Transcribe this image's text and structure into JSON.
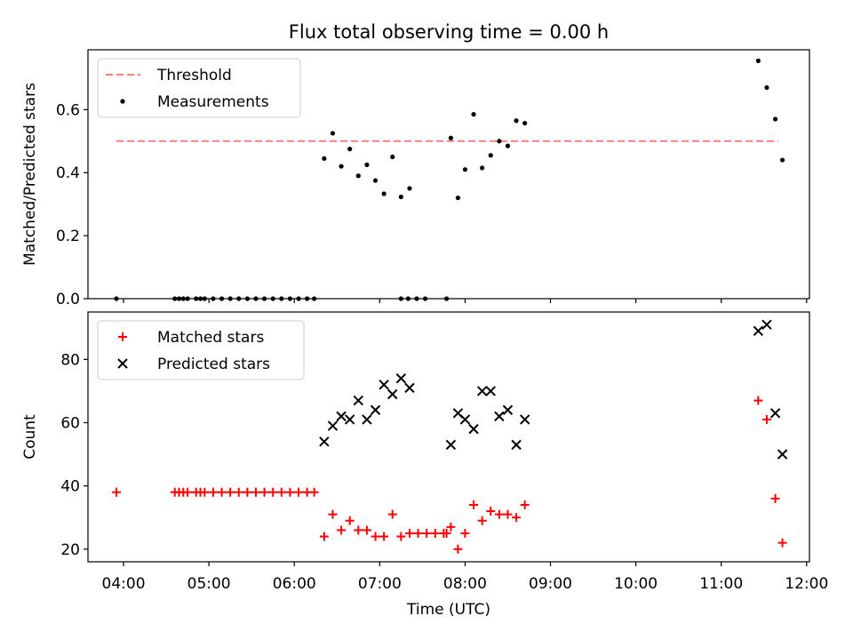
{
  "title": "Flux total observing time = 0.00 h",
  "xlabel": "Time (UTC)",
  "x_ticks": [
    "04:00",
    "05:00",
    "06:00",
    "07:00",
    "08:00",
    "09:00",
    "10:00",
    "11:00",
    "12:00"
  ],
  "colors": {
    "threshold": "#ff7f7f",
    "measurements": "#000000",
    "matched": "#ff0000",
    "predicted": "#000000"
  },
  "chart_data": [
    {
      "type": "scatter",
      "panel": "top",
      "ylabel": "Matched/Predicted stars",
      "xlim": [
        "03:35",
        "12:02"
      ],
      "ylim": [
        0,
        0.79
      ],
      "y_ticks": [
        "0.0",
        "0.2",
        "0.4",
        "0.6"
      ],
      "legend_position": "upper-left",
      "threshold": {
        "name": "Threshold",
        "value": 0.5,
        "x_range": [
          "03:55",
          "11:40"
        ],
        "style": "dashed"
      },
      "series": [
        {
          "name": "Measurements",
          "marker": "dot",
          "points": [
            [
              "03:55",
              0
            ],
            [
              "04:36",
              0
            ],
            [
              "04:39",
              0
            ],
            [
              "04:42",
              0
            ],
            [
              "04:45",
              0
            ],
            [
              "04:51",
              0
            ],
            [
              "04:54",
              0
            ],
            [
              "04:57",
              0
            ],
            [
              "05:03",
              0
            ],
            [
              "05:09",
              0
            ],
            [
              "05:15",
              0
            ],
            [
              "05:21",
              0
            ],
            [
              "05:27",
              0
            ],
            [
              "05:33",
              0
            ],
            [
              "05:39",
              0
            ],
            [
              "05:45",
              0
            ],
            [
              "05:51",
              0
            ],
            [
              "05:57",
              0
            ],
            [
              "06:03",
              0
            ],
            [
              "06:09",
              0
            ],
            [
              "06:14",
              0
            ],
            [
              "06:21",
              0.445
            ],
            [
              "06:27",
              0.525
            ],
            [
              "06:33",
              0.42
            ],
            [
              "06:39",
              0.475
            ],
            [
              "06:45",
              0.39
            ],
            [
              "06:51",
              0.425
            ],
            [
              "06:57",
              0.375
            ],
            [
              "07:03",
              0.333
            ],
            [
              "07:09",
              0.45
            ],
            [
              "07:15",
              0.323
            ],
            [
              "07:21",
              0.35
            ],
            [
              "07:15",
              0
            ],
            [
              "07:20",
              0
            ],
            [
              "07:26",
              0
            ],
            [
              "07:32",
              0
            ],
            [
              "07:47",
              0
            ],
            [
              "07:50",
              0.51
            ],
            [
              "07:55",
              0.32
            ],
            [
              "08:00",
              0.41
            ],
            [
              "08:06",
              0.585
            ],
            [
              "08:12",
              0.415
            ],
            [
              "08:18",
              0.455
            ],
            [
              "08:24",
              0.5
            ],
            [
              "08:30",
              0.485
            ],
            [
              "08:36",
              0.565
            ],
            [
              "08:42",
              0.557
            ],
            [
              "11:26",
              0.755
            ],
            [
              "11:32",
              0.67
            ],
            [
              "11:38",
              0.57
            ],
            [
              "11:43",
              0.44
            ]
          ]
        }
      ]
    },
    {
      "type": "scatter",
      "panel": "bottom",
      "ylabel": "Count",
      "xlim": [
        "03:35",
        "12:02"
      ],
      "ylim": [
        16,
        95
      ],
      "y_ticks": [
        "20",
        "40",
        "60",
        "80"
      ],
      "legend_position": "upper-left",
      "series": [
        {
          "name": "Matched stars",
          "marker": "plus",
          "points": [
            [
              "03:55",
              38
            ],
            [
              "04:36",
              38
            ],
            [
              "04:39",
              38
            ],
            [
              "04:42",
              38
            ],
            [
              "04:45",
              38
            ],
            [
              "04:51",
              38
            ],
            [
              "04:54",
              38
            ],
            [
              "04:57",
              38
            ],
            [
              "05:03",
              38
            ],
            [
              "05:09",
              38
            ],
            [
              "05:15",
              38
            ],
            [
              "05:21",
              38
            ],
            [
              "05:27",
              38
            ],
            [
              "05:33",
              38
            ],
            [
              "05:39",
              38
            ],
            [
              "05:45",
              38
            ],
            [
              "05:51",
              38
            ],
            [
              "05:57",
              38
            ],
            [
              "06:03",
              38
            ],
            [
              "06:09",
              38
            ],
            [
              "06:14",
              38
            ],
            [
              "06:21",
              24
            ],
            [
              "06:27",
              31
            ],
            [
              "06:33",
              26
            ],
            [
              "06:39",
              29
            ],
            [
              "06:45",
              26
            ],
            [
              "06:51",
              26
            ],
            [
              "06:57",
              24
            ],
            [
              "07:03",
              24
            ],
            [
              "07:09",
              31
            ],
            [
              "07:15",
              24
            ],
            [
              "07:21",
              25
            ],
            [
              "07:27",
              25
            ],
            [
              "07:33",
              25
            ],
            [
              "07:39",
              25
            ],
            [
              "07:45",
              25
            ],
            [
              "07:47",
              25
            ],
            [
              "07:50",
              27
            ],
            [
              "07:55",
              20
            ],
            [
              "08:00",
              25
            ],
            [
              "08:06",
              34
            ],
            [
              "08:12",
              29
            ],
            [
              "08:18",
              32
            ],
            [
              "08:24",
              31
            ],
            [
              "08:30",
              31
            ],
            [
              "08:36",
              30
            ],
            [
              "08:42",
              34
            ],
            [
              "11:26",
              67
            ],
            [
              "11:32",
              61
            ],
            [
              "11:38",
              36
            ],
            [
              "11:43",
              22
            ]
          ]
        },
        {
          "name": "Predicted stars",
          "marker": "x",
          "points": [
            [
              "06:21",
              54
            ],
            [
              "06:27",
              59
            ],
            [
              "06:33",
              62
            ],
            [
              "06:39",
              61
            ],
            [
              "06:45",
              67
            ],
            [
              "06:51",
              61
            ],
            [
              "06:57",
              64
            ],
            [
              "07:03",
              72
            ],
            [
              "07:09",
              69
            ],
            [
              "07:15",
              74
            ],
            [
              "07:21",
              71
            ],
            [
              "07:50",
              53
            ],
            [
              "07:55",
              63
            ],
            [
              "08:00",
              61
            ],
            [
              "08:06",
              58
            ],
            [
              "08:12",
              70
            ],
            [
              "08:18",
              70
            ],
            [
              "08:24",
              62
            ],
            [
              "08:30",
              64
            ],
            [
              "08:36",
              53
            ],
            [
              "08:42",
              61
            ],
            [
              "11:26",
              89
            ],
            [
              "11:32",
              91
            ],
            [
              "11:38",
              63
            ],
            [
              "11:43",
              50
            ]
          ]
        }
      ]
    }
  ]
}
